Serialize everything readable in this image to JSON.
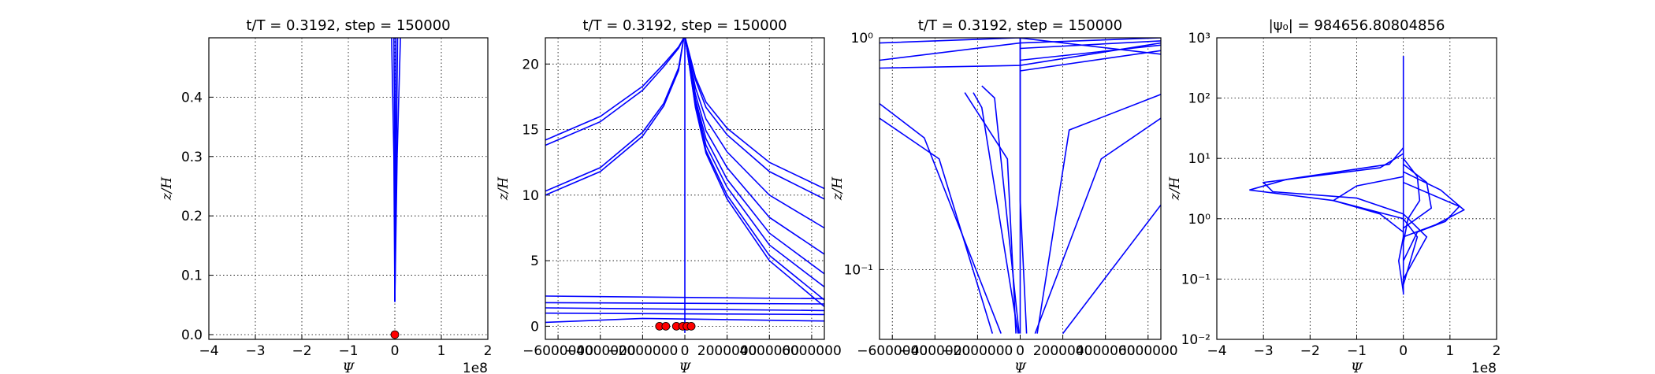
{
  "chart_data": [
    {
      "type": "line",
      "title": "t/T = 0.3192, step = 150000",
      "xlabel": "Ψ",
      "ylabel": "z/H",
      "x_offset_text": "1e8",
      "grid": true,
      "xlim": [
        -4,
        2
      ],
      "ylim": [
        -0.008,
        0.5
      ],
      "xticks": [
        {
          "value": -4,
          "label": "−4"
        },
        {
          "value": -3,
          "label": "−3"
        },
        {
          "value": -2,
          "label": "−2"
        },
        {
          "value": -1,
          "label": "−1"
        },
        0,
        1,
        2
      ],
      "yticks": [
        {
          "value": 0,
          "label": "0.0"
        },
        0.1,
        0.2,
        0.3,
        0.4
      ],
      "series": [
        {
          "color": "#0000ff",
          "x": [
            0,
            -0.02,
            -0.07
          ],
          "values": [
            0.055,
            0.3,
            0.5
          ]
        },
        {
          "color": "#0000ff",
          "x": [
            0,
            0,
            -0.02
          ],
          "values": [
            0.055,
            0.3,
            0.5
          ]
        },
        {
          "color": "#0000ff",
          "x": [
            0,
            0.01,
            0.02
          ],
          "values": [
            0.055,
            0.3,
            0.5
          ]
        },
        {
          "color": "#0000ff",
          "x": [
            0,
            0.03,
            0.06
          ],
          "values": [
            0.055,
            0.3,
            0.5
          ]
        },
        {
          "color": "#0000ff",
          "x": [
            0,
            0.05,
            0.12
          ],
          "values": [
            0.055,
            0.3,
            0.5
          ]
        }
      ],
      "points": {
        "color": "#ff0000",
        "x": [
          0
        ],
        "values": [
          0
        ]
      }
    },
    {
      "type": "line",
      "title": "t/T = 0.3192, step = 150000",
      "xlabel": "Ψ",
      "ylabel": "z/H",
      "grid": true,
      "xlim": [
        -6600000,
        6600000
      ],
      "ylim": [
        -1,
        22
      ],
      "xticks": [
        {
          "value": -6000000,
          "label": "−6000000"
        },
        {
          "value": -4000000,
          "label": "−4000000"
        },
        {
          "value": -2000000,
          "label": "−2000000"
        },
        0,
        2000000,
        4000000,
        6000000
      ],
      "yticks": [
        0,
        5,
        10,
        15,
        20
      ],
      "series": [
        {
          "color": "#0000ff",
          "x": [
            -6600000,
            -4000000,
            -2000000,
            -1000000,
            -300000,
            -50000
          ],
          "values": [
            13.8,
            15.6,
            18,
            19.8,
            21.2,
            22
          ]
        },
        {
          "color": "#0000ff",
          "x": [
            -6600000,
            -4000000,
            -2000000,
            -1000000,
            -300000,
            -50000
          ],
          "values": [
            14.2,
            16,
            18.3,
            20,
            21.3,
            22
          ]
        },
        {
          "color": "#0000ff",
          "x": [
            -6600000,
            -4000000,
            -2000000,
            -1000000,
            -300000,
            -50000
          ],
          "values": [
            10,
            11.8,
            14.5,
            16.8,
            19.5,
            22
          ]
        },
        {
          "color": "#0000ff",
          "x": [
            -6600000,
            -4000000,
            -2000000,
            -1000000,
            -300000,
            -50000
          ],
          "values": [
            10.3,
            12.1,
            14.8,
            17,
            19.7,
            22
          ]
        },
        {
          "color": "#0000ff",
          "x": [
            20000,
            500000,
            1000000,
            2000000,
            4000000,
            6600000
          ],
          "values": [
            22,
            19,
            17.1,
            15.1,
            12.5,
            10.5
          ]
        },
        {
          "color": "#0000ff",
          "x": [
            20000,
            500000,
            1000000,
            2000000,
            4000000,
            6600000
          ],
          "values": [
            22,
            18.8,
            16.7,
            14.6,
            11.8,
            9.7
          ]
        },
        {
          "color": "#0000ff",
          "x": [
            20000,
            500000,
            1000000,
            2000000,
            4000000,
            6600000
          ],
          "values": [
            22,
            18.2,
            15.8,
            13.3,
            10,
            7.5
          ]
        },
        {
          "color": "#0000ff",
          "x": [
            20000,
            500000,
            1000000,
            2000000,
            4000000,
            6600000
          ],
          "values": [
            22,
            17.7,
            14.9,
            12.1,
            8.3,
            5.5
          ]
        },
        {
          "color": "#0000ff",
          "x": [
            20000,
            500000,
            1000000,
            2000000,
            4000000,
            6600000
          ],
          "values": [
            22,
            17.3,
            14.3,
            11.2,
            7.1,
            4
          ]
        },
        {
          "color": "#0000ff",
          "x": [
            20000,
            500000,
            1000000,
            2000000,
            4000000,
            6600000
          ],
          "values": [
            22,
            17.1,
            13.8,
            10.6,
            6.2,
            3
          ]
        },
        {
          "color": "#0000ff",
          "x": [
            20000,
            500000,
            1000000,
            2000000,
            4000000,
            6600000
          ],
          "values": [
            22,
            16.8,
            13.4,
            10,
            5.4,
            2
          ]
        },
        {
          "color": "#0000ff",
          "x": [
            20000,
            500000,
            1000000,
            2000000,
            4000000,
            6600000
          ],
          "values": [
            22,
            16.7,
            13.2,
            9.7,
            5,
            1.5
          ]
        },
        {
          "color": "#0000ff",
          "x": [
            0,
            0
          ],
          "values": [
            -0.5,
            22
          ]
        },
        {
          "color": "#0000ff",
          "x": [
            -6600000,
            6600000
          ],
          "values": [
            2.3,
            2.1
          ]
        },
        {
          "color": "#0000ff",
          "x": [
            -6600000,
            6600000
          ],
          "values": [
            1.8,
            1.7
          ]
        },
        {
          "color": "#0000ff",
          "x": [
            -6600000,
            6600000
          ],
          "values": [
            1.4,
            1.2
          ]
        },
        {
          "color": "#0000ff",
          "x": [
            -6600000,
            6600000
          ],
          "values": [
            1,
            0.9
          ]
        },
        {
          "color": "#0000ff",
          "x": [
            -6600000,
            -2000000,
            6600000
          ],
          "values": [
            0.3,
            0.6,
            0.4
          ]
        }
      ],
      "points": {
        "color": "#ff0000",
        "x": [
          -1200000,
          -900000,
          -400000,
          -100000,
          100000,
          300000
        ],
        "values": [
          0,
          0,
          0,
          0,
          0,
          0
        ]
      }
    },
    {
      "type": "line",
      "title": "t/T = 0.3192, step = 150000",
      "xlabel": "Ψ",
      "ylabel": "z/H",
      "grid": true,
      "yscale": "log",
      "xlim": [
        -6600000,
        6600000
      ],
      "ylim": [
        0.05,
        1
      ],
      "xticks": [
        {
          "value": -6000000,
          "label": "−6000000"
        },
        {
          "value": -4000000,
          "label": "−4000000"
        },
        {
          "value": -2000000,
          "label": "−2000000"
        },
        0,
        2000000,
        4000000,
        6000000
      ],
      "yticks": [
        {
          "value": 0.1,
          "label": "10⁻¹"
        },
        {
          "value": 1,
          "label": "10⁰"
        }
      ],
      "series": [
        {
          "color": "#0000ff",
          "x": [
            -6600000,
            -3800000,
            -1300000
          ],
          "values": [
            0.45,
            0.3,
            0.053
          ]
        },
        {
          "color": "#0000ff",
          "x": [
            -6600000,
            -4500000,
            -900000
          ],
          "values": [
            0.52,
            0.37,
            0.053
          ]
        },
        {
          "color": "#0000ff",
          "x": [
            -2600000,
            -600000,
            -200000
          ],
          "values": [
            0.58,
            0.3,
            0.053
          ]
        },
        {
          "color": "#0000ff",
          "x": [
            -2200000,
            -1800000,
            -100000
          ],
          "values": [
            0.58,
            0.5,
            0.053
          ]
        },
        {
          "color": "#0000ff",
          "x": [
            -1800000,
            -1200000,
            -50000
          ],
          "values": [
            0.62,
            0.55,
            0.053
          ]
        },
        {
          "color": "#0000ff",
          "x": [
            0,
            0
          ],
          "values": [
            0.053,
            1
          ]
        },
        {
          "color": "#0000ff",
          "x": [
            300000,
            0,
            0
          ],
          "values": [
            0.053,
            0.2,
            1
          ]
        },
        {
          "color": "#0000ff",
          "x": [
            800000,
            2300000,
            6600000
          ],
          "values": [
            0.053,
            0.4,
            0.57
          ]
        },
        {
          "color": "#0000ff",
          "x": [
            700000,
            3800000,
            6600000
          ],
          "values": [
            0.053,
            0.3,
            0.45
          ]
        },
        {
          "color": "#0000ff",
          "x": [
            2000000,
            6600000
          ],
          "values": [
            0.053,
            0.19
          ]
        },
        {
          "color": "#0000ff",
          "x": [
            -6600000,
            0,
            6600000
          ],
          "values": [
            0.74,
            0.76,
            0.95
          ]
        },
        {
          "color": "#0000ff",
          "x": [
            -6600000,
            0,
            6600000
          ],
          "values": [
            0.8,
            0.95,
            1
          ]
        },
        {
          "color": "#0000ff",
          "x": [
            -6600000,
            -100000,
            6600000
          ],
          "values": [
            0.95,
            1,
            0.85
          ]
        },
        {
          "color": "#0000ff",
          "x": [
            0,
            6600000
          ],
          "values": [
            0.72,
            0.88
          ]
        },
        {
          "color": "#0000ff",
          "x": [
            0,
            6600000
          ],
          "values": [
            0.8,
            0.93
          ]
        },
        {
          "color": "#0000ff",
          "x": [
            0,
            6600000
          ],
          "values": [
            0.9,
            0.97
          ]
        }
      ]
    },
    {
      "type": "line",
      "title": "|ψ₀| = 984656.80804856",
      "xlabel": "Ψ",
      "ylabel": "z/H",
      "x_offset_text": "1e8",
      "grid": true,
      "yscale": "log",
      "xlim": [
        -4,
        2
      ],
      "ylim": [
        0.01,
        1000
      ],
      "xticks": [
        {
          "value": -4,
          "label": "−4"
        },
        {
          "value": -3,
          "label": "−3"
        },
        {
          "value": -2,
          "label": "−2"
        },
        {
          "value": -1,
          "label": "−1"
        },
        0,
        1,
        2
      ],
      "yticks": [
        {
          "value": 0.01,
          "label": "10⁻²"
        },
        {
          "value": 0.1,
          "label": "10⁻¹"
        },
        {
          "value": 1,
          "label": "10⁰"
        },
        {
          "value": 10,
          "label": "10¹"
        },
        {
          "value": 100,
          "label": "10²"
        },
        {
          "value": 1000,
          "label": "10³"
        }
      ],
      "series": [
        {
          "color": "#0000ff",
          "x": [
            0,
            0
          ],
          "values": [
            0.055,
            500
          ]
        },
        {
          "color": "#0000ff",
          "x": [
            0,
            -0.3,
            -2.5,
            -3.3,
            -1.5,
            0,
            0.3,
            0
          ],
          "values": [
            15,
            8,
            4.5,
            3,
            2,
            1,
            0.5,
            0.08
          ]
        },
        {
          "color": "#0000ff",
          "x": [
            0,
            -0.5,
            -3,
            -2.8,
            -1,
            0,
            0.5,
            0
          ],
          "values": [
            12,
            7,
            4,
            2.8,
            2.2,
            1.2,
            0.5,
            0.1
          ]
        },
        {
          "color": "#0000ff",
          "x": [
            0,
            0.8,
            1.3,
            0.7,
            0,
            -0.1,
            0
          ],
          "values": [
            6,
            3,
            1.4,
            0.8,
            0.5,
            0.2,
            0.06
          ]
        },
        {
          "color": "#0000ff",
          "x": [
            0,
            1.2,
            0.9,
            0.3,
            0
          ],
          "values": [
            4,
            1.6,
            0.9,
            0.6,
            0.2
          ]
        },
        {
          "color": "#0000ff",
          "x": [
            0,
            -1,
            -1.5,
            -0.5,
            0
          ],
          "values": [
            5,
            3.5,
            2,
            1.2,
            0.6
          ]
        },
        {
          "color": "#0000ff",
          "x": [
            0,
            0.5,
            0.6,
            0,
            0
          ],
          "values": [
            8,
            4,
            1.5,
            0.7,
            0.3
          ]
        },
        {
          "color": "#0000ff",
          "x": [
            0,
            0.3,
            0.35,
            0.1,
            0
          ],
          "values": [
            10,
            5,
            2,
            1,
            0.4
          ]
        }
      ]
    }
  ]
}
